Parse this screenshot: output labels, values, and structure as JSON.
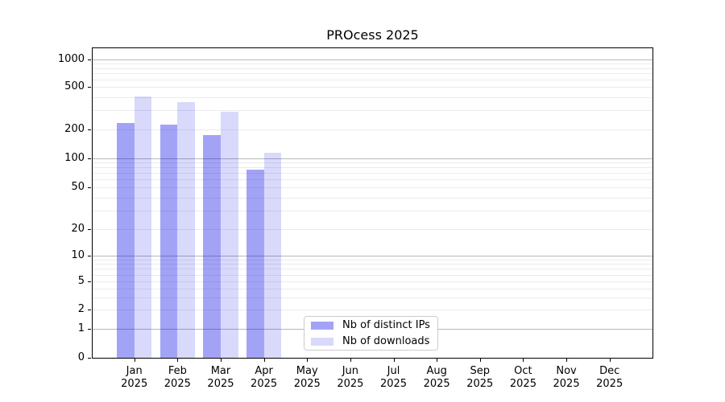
{
  "chart_data": {
    "type": "bar",
    "title": "PROcess 2025",
    "categories": [
      "Jan 2025",
      "Feb 2025",
      "Mar 2025",
      "Apr 2025",
      "May 2025",
      "Jun 2025",
      "Jul 2025",
      "Aug 2025",
      "Sep 2025",
      "Oct 2025",
      "Nov 2025",
      "Dec 2025"
    ],
    "series": [
      {
        "name": "Nb of distinct IPs",
        "color": "rgba(0,0,230,0.36)",
        "values": [
          228,
          219,
          174,
          76,
          null,
          null,
          null,
          null,
          null,
          null,
          null,
          null
        ]
      },
      {
        "name": "Nb of downloads",
        "color": "rgba(0,0,230,0.15)",
        "values": [
          403,
          356,
          290,
          114,
          null,
          null,
          null,
          null,
          null,
          null,
          null,
          null
        ]
      }
    ],
    "yscale": "symlog",
    "yticks": [
      0,
      1,
      2,
      5,
      10,
      20,
      50,
      100,
      200,
      500,
      1000
    ],
    "ylim": [
      0,
      1150
    ],
    "grid": "horizontal, minor + major (powers of 10 darker)",
    "legend_position": "lower center, inside axes",
    "colors": {
      "bar_distinct_ips_solid": "#a4a4f4",
      "bar_downloads_solid": "#dcdcf9",
      "grid_major": "#b8b8b8",
      "grid_minor": "#ebebeb",
      "axis": "#000000",
      "legend_border": "#cccccc",
      "background": "#ffffff"
    }
  }
}
